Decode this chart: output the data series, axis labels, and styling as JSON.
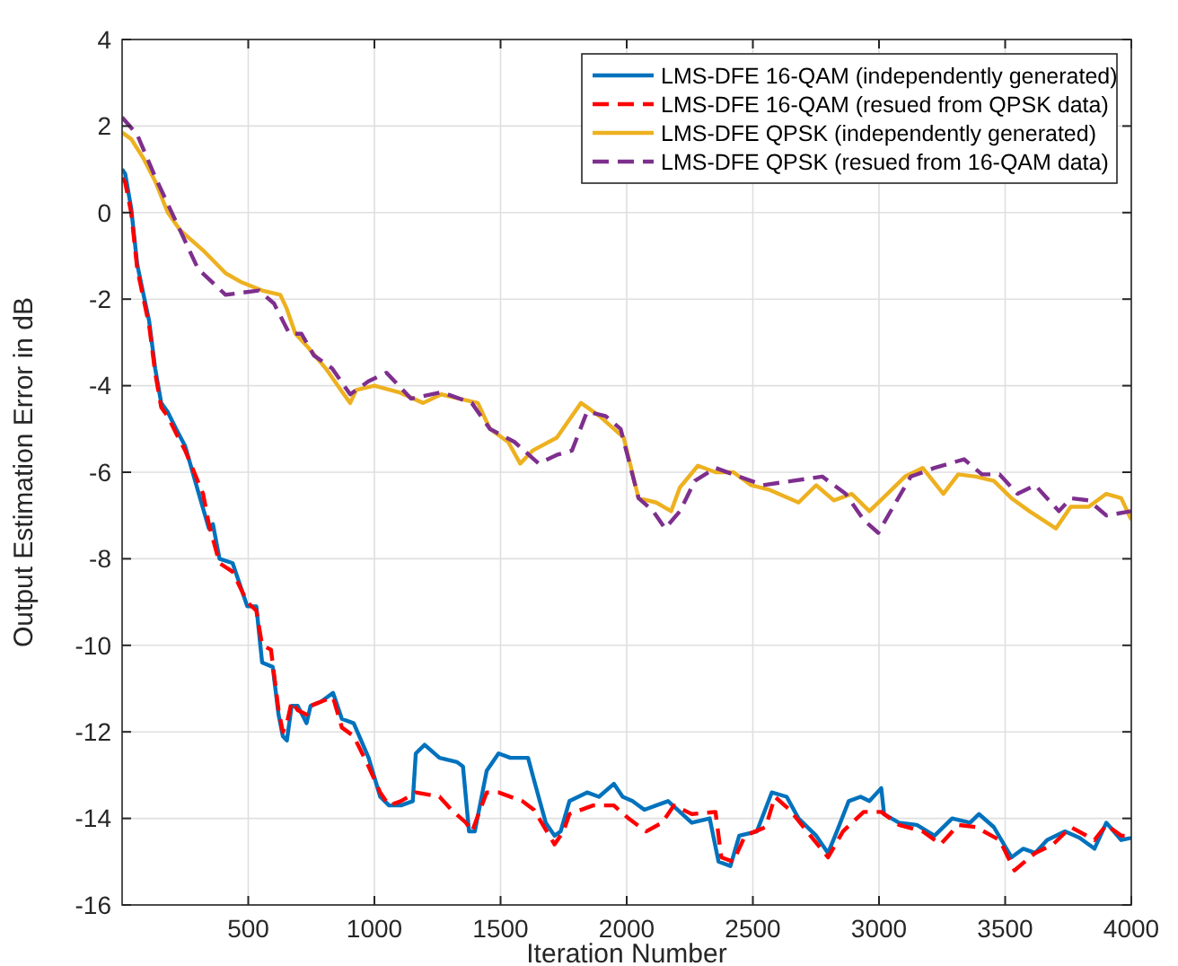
{
  "chart_data": {
    "type": "line",
    "xlabel": "Iteration Number",
    "ylabel": "Output Estimation Error in dB",
    "xlim": [
      0,
      4000
    ],
    "xticks": [
      500,
      1000,
      1500,
      2000,
      2500,
      3000,
      3500,
      4000
    ],
    "ylim": [
      -16,
      4
    ],
    "yticks": [
      -16,
      -14,
      -12,
      -10,
      -8,
      -6,
      -4,
      -2,
      0,
      2,
      4
    ],
    "grid": true,
    "legend": "top right",
    "series": [
      {
        "name": "LMS-DFE 16-QAM (independently generated)",
        "color": "#0072bd",
        "line_style": "solid",
        "x": [
          0,
          12,
          36,
          60,
          85,
          107,
          131,
          155,
          180,
          214,
          250,
          309,
          344,
          360,
          386,
          438,
          496,
          532,
          555,
          597,
          620,
          637,
          653,
          672,
          696,
          731,
          747,
          789,
          836,
          871,
          918,
          977,
          1023,
          1058,
          1105,
          1152,
          1164,
          1199,
          1258,
          1328,
          1351,
          1375,
          1398,
          1445,
          1492,
          1539,
          1609,
          1632,
          1679,
          1714,
          1738,
          1773,
          1843,
          1890,
          1949,
          1984,
          2023,
          2070,
          2117,
          2164,
          2211,
          2258,
          2329,
          2364,
          2411,
          2446,
          2516,
          2575,
          2634,
          2681,
          2751,
          2798,
          2833,
          2880,
          2927,
          2962,
          3009,
          3020,
          3079,
          3150,
          3220,
          3290,
          3361,
          3396,
          3455,
          3525,
          3572,
          3619,
          3666,
          3737,
          3795,
          3854,
          3901,
          3960,
          4000
        ],
        "values": [
          1.0,
          0.9,
          0.1,
          -1.2,
          -1.9,
          -2.5,
          -3.6,
          -4.4,
          -4.6,
          -5.0,
          -5.4,
          -6.6,
          -7.3,
          -7.2,
          -8.0,
          -8.1,
          -9.1,
          -9.1,
          -10.4,
          -10.5,
          -11.6,
          -12.1,
          -12.2,
          -11.4,
          -11.4,
          -11.8,
          -11.4,
          -11.3,
          -11.1,
          -11.7,
          -11.8,
          -12.6,
          -13.5,
          -13.7,
          -13.7,
          -13.6,
          -12.5,
          -12.3,
          -12.6,
          -12.7,
          -12.8,
          -14.3,
          -14.3,
          -12.9,
          -12.5,
          -12.6,
          -12.6,
          -13.1,
          -14.1,
          -14.4,
          -14.3,
          -13.6,
          -13.4,
          -13.5,
          -13.2,
          -13.5,
          -13.6,
          -13.8,
          -13.7,
          -13.6,
          -13.85,
          -14.1,
          -14.0,
          -15.0,
          -15.1,
          -14.4,
          -14.3,
          -13.4,
          -13.5,
          -14.0,
          -14.4,
          -14.8,
          -14.3,
          -13.6,
          -13.5,
          -13.6,
          -13.3,
          -13.9,
          -14.1,
          -14.15,
          -14.4,
          -14.0,
          -14.1,
          -13.9,
          -14.2,
          -14.9,
          -14.7,
          -14.8,
          -14.5,
          -14.3,
          -14.45,
          -14.7,
          -14.1,
          -14.5,
          -14.45
        ]
      },
      {
        "name": "LMS-DFE 16-QAM (resued from QPSK data)",
        "color": "#ff0000",
        "line_style": "dashed",
        "x": [
          0,
          12,
          36,
          60,
          85,
          107,
          131,
          155,
          180,
          214,
          250,
          321,
          344,
          386,
          438,
          496,
          532,
          555,
          590,
          620,
          637,
          653,
          672,
          696,
          731,
          747,
          789,
          836,
          871,
          918,
          977,
          1023,
          1058,
          1105,
          1164,
          1258,
          1305,
          1363,
          1387,
          1445,
          1492,
          1586,
          1632,
          1714,
          1749,
          1773,
          1867,
          1949,
          2007,
          2077,
          2140,
          2187,
          2258,
          2352,
          2375,
          2422,
          2469,
          2551,
          2587,
          2646,
          2728,
          2798,
          2857,
          2939,
          3009,
          3079,
          3173,
          3244,
          3314,
          3384,
          3478,
          3537,
          3619,
          3690,
          3760,
          3854,
          3901,
          3960,
          4000
        ],
        "values": [
          0.8,
          0.7,
          0.0,
          -1.3,
          -2.0,
          -2.6,
          -3.7,
          -4.5,
          -4.7,
          -5.1,
          -5.5,
          -6.5,
          -7.2,
          -8.1,
          -8.3,
          -9.0,
          -9.2,
          -10.0,
          -10.1,
          -11.5,
          -12.0,
          -11.8,
          -11.3,
          -11.5,
          -11.6,
          -11.4,
          -11.3,
          -11.2,
          -11.9,
          -12.1,
          -12.8,
          -13.4,
          -13.7,
          -13.6,
          -13.4,
          -13.5,
          -13.8,
          -14.1,
          -14.3,
          -13.4,
          -13.4,
          -13.6,
          -13.8,
          -14.6,
          -14.3,
          -13.9,
          -13.7,
          -13.7,
          -14.0,
          -14.3,
          -14.1,
          -13.7,
          -13.9,
          -13.85,
          -14.9,
          -15.0,
          -14.4,
          -14.2,
          -13.5,
          -13.8,
          -14.4,
          -14.9,
          -14.3,
          -13.85,
          -13.85,
          -14.15,
          -14.3,
          -14.6,
          -14.15,
          -14.2,
          -14.5,
          -15.2,
          -14.8,
          -14.6,
          -14.2,
          -14.5,
          -14.15,
          -14.4,
          -14.4
        ]
      },
      {
        "name": "LMS-DFE QPSK (independently generated)",
        "color": "#edb120",
        "line_style": "solid",
        "x": [
          0,
          36,
          85,
          133,
          181,
          229,
          326,
          410,
          470,
          555,
          627,
          651,
          687,
          735,
          807,
          867,
          904,
          928,
          1000,
          1096,
          1193,
          1265,
          1337,
          1410,
          1458,
          1530,
          1578,
          1627,
          1723,
          1783,
          1819,
          1892,
          1988,
          2047,
          2117,
          2176,
          2211,
          2282,
          2352,
          2423,
          2493,
          2563,
          2681,
          2751,
          2821,
          2892,
          2962,
          3033,
          3103,
          3173,
          3255,
          3314,
          3384,
          3455,
          3525,
          3596,
          3701,
          3760,
          3831,
          3901,
          3960,
          4000
        ],
        "values": [
          1.85,
          1.7,
          1.25,
          0.7,
          0.0,
          -0.4,
          -0.9,
          -1.4,
          -1.6,
          -1.8,
          -1.9,
          -2.2,
          -2.8,
          -3.1,
          -3.6,
          -4.1,
          -4.4,
          -4.1,
          -4.0,
          -4.15,
          -4.4,
          -4.2,
          -4.3,
          -4.4,
          -5.0,
          -5.3,
          -5.8,
          -5.5,
          -5.2,
          -4.7,
          -4.4,
          -4.7,
          -5.2,
          -6.6,
          -6.7,
          -6.9,
          -6.35,
          -5.85,
          -6.0,
          -6.0,
          -6.3,
          -6.4,
          -6.7,
          -6.3,
          -6.65,
          -6.5,
          -6.9,
          -6.5,
          -6.1,
          -5.9,
          -6.5,
          -6.05,
          -6.1,
          -6.2,
          -6.6,
          -6.9,
          -7.3,
          -6.8,
          -6.8,
          -6.5,
          -6.6,
          -7.1
        ]
      },
      {
        "name": "LMS-DFE QPSK (resued from 16-QAM data)",
        "color": "#7e2f8e",
        "line_style": "dashed",
        "x": [
          0,
          60,
          133,
          205,
          301,
          410,
          542,
          602,
          663,
          711,
          760,
          832,
          904,
          976,
          1048,
          1145,
          1265,
          1386,
          1458,
          1555,
          1651,
          1723,
          1783,
          1843,
          1916,
          1976,
          2047,
          2105,
          2152,
          2211,
          2270,
          2352,
          2446,
          2540,
          2657,
          2775,
          2868,
          2939,
          2997,
          3056,
          3126,
          3220,
          3337,
          3408,
          3478,
          3549,
          3619,
          3713,
          3760,
          3831,
          3901,
          4000
        ],
        "values": [
          2.2,
          1.8,
          0.8,
          -0.1,
          -1.3,
          -1.9,
          -1.8,
          -2.1,
          -2.8,
          -2.8,
          -3.3,
          -3.6,
          -4.2,
          -3.9,
          -3.7,
          -4.3,
          -4.15,
          -4.4,
          -5.0,
          -5.3,
          -5.8,
          -5.6,
          -5.5,
          -4.6,
          -4.7,
          -5.0,
          -6.6,
          -6.9,
          -7.3,
          -6.9,
          -6.2,
          -5.9,
          -6.1,
          -6.3,
          -6.2,
          -6.1,
          -6.5,
          -7.1,
          -7.4,
          -6.8,
          -6.1,
          -5.9,
          -5.7,
          -6.05,
          -6.05,
          -6.5,
          -6.3,
          -6.9,
          -6.6,
          -6.65,
          -7.0,
          -6.9
        ]
      }
    ]
  }
}
